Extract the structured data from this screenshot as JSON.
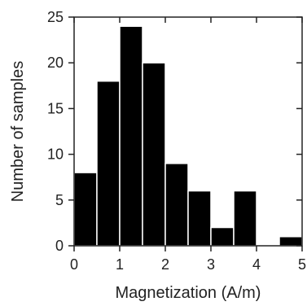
{
  "chart_data": {
    "type": "bar",
    "title": "",
    "xlabel": "Magnetization (A/m)",
    "ylabel": "Number of samples",
    "bin_edges": [
      0,
      0.5,
      1,
      1.5,
      2,
      2.5,
      3,
      3.5,
      4,
      4.5,
      5
    ],
    "values": [
      8,
      18,
      24,
      20,
      9,
      6,
      2,
      6,
      0,
      1
    ],
    "xlim": [
      0,
      5
    ],
    "ylim": [
      0,
      25
    ],
    "xticks": [
      0,
      1,
      2,
      3,
      4,
      5
    ],
    "yticks": [
      0,
      5,
      10,
      15,
      20,
      25
    ],
    "grid": false,
    "bar_color": "#000000",
    "bar_edge_color": "#ffffff"
  }
}
